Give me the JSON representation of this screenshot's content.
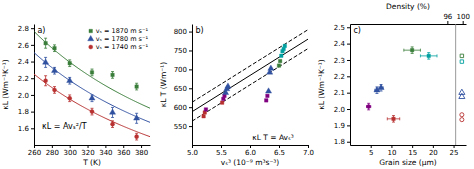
{
  "chart_data": [
    {
      "type": "scatter",
      "x_label": "T (K)",
      "y_label": "κL (Wm⁻¹K⁻¹)",
      "xlim": [
        260,
        390
      ],
      "ylim": [
        1.4,
        2.85
      ],
      "xticks": [
        260,
        280,
        300,
        320,
        340,
        360,
        380
      ],
      "yticks": [
        1.6,
        1.8,
        {
          "value": 2.0,
          "label": "2.0"
        },
        2.2,
        2.4,
        2.6,
        2.8
      ],
      "legend": "upper right",
      "annotations": [
        "a)",
        "κL = Avₛ²/T"
      ],
      "series": [
        {
          "name": "vₛ = 1870 m s⁻¹",
          "color": "#3a7d3a",
          "marker": "square",
          "x": [
            273,
            283,
            300,
            325,
            348,
            375
          ],
          "values": [
            2.62,
            2.56,
            2.38,
            2.27,
            2.24,
            2.1
          ],
          "errors": [
            0.06,
            0.04,
            0.04,
            0.04,
            0.04,
            0.04
          ],
          "fit_A": 718
        },
        {
          "name": "vₛ = 1780 m s⁻¹",
          "color": "#3050a0",
          "marker": "triangle",
          "x": [
            273,
            283,
            300,
            325,
            348,
            375
          ],
          "values": [
            2.39,
            2.29,
            2.17,
            1.96,
            1.79,
            1.72
          ],
          "errors": [
            0.06,
            0.04,
            0.04,
            0.04,
            0.06,
            0.06
          ],
          "fit_A": 652
        },
        {
          "name": "vₛ = 1740 m s⁻¹",
          "color": "#b83030",
          "marker": "circle",
          "x": [
            273,
            283,
            300,
            325,
            348,
            375
          ],
          "values": [
            2.17,
            2.06,
            1.96,
            1.8,
            1.65,
            1.5
          ],
          "errors": [
            0.06,
            0.04,
            0.04,
            0.04,
            0.04,
            0.04
          ],
          "fit_A": 585
        }
      ]
    },
    {
      "type": "scatter",
      "x_label": "vₛ³ (10⁻⁹ m³s⁻³)",
      "y_label": "κL T (Wm⁻¹)",
      "xlim": [
        5.0,
        7.0
      ],
      "ylim": [
        500,
        820
      ],
      "xticks": [
        {
          "value": 5.0,
          "label": "5.0"
        },
        5.5,
        {
          "value": 6.0,
          "label": "6.0"
        },
        6.5,
        {
          "value": 7.0,
          "label": "7.0"
        }
      ],
      "yticks": [
        550,
        600,
        650,
        700,
        750,
        800
      ],
      "annotations": [
        "b)",
        "κL T = Avₛ³"
      ],
      "series": [
        {
          "type": "line",
          "color": "black",
          "line_style": "dashed",
          "x": [
            5.0,
            7.0
          ],
          "values": [
            563,
            755
          ]
        },
        {
          "type": "line",
          "color": "black",
          "line_style": "solid",
          "x": [
            5.0,
            7.0
          ],
          "values": [
            588,
            780
          ]
        },
        {
          "type": "line",
          "color": "black",
          "line_style": "dashed",
          "x": [
            5.0,
            7.0
          ],
          "values": [
            613,
            805
          ]
        },
        {
          "color": "#b83030",
          "marker": "square",
          "x": [
            5.2,
            5.22,
            5.52
          ],
          "values": [
            576,
            586,
            612
          ]
        },
        {
          "color": "#800080",
          "marker": "square",
          "x": [
            5.24,
            5.54,
            5.56,
            6.28,
            6.3
          ],
          "values": [
            594,
            622,
            630,
            618,
            630
          ]
        },
        {
          "color": "#3050a0",
          "marker": "triangle",
          "x": [
            5.58,
            5.6,
            5.62,
            6.32,
            6.34,
            6.36
          ],
          "values": [
            638,
            648,
            655,
            642,
            692,
            702
          ]
        },
        {
          "color": "#3a7d3a",
          "marker": "square",
          "x": [
            6.5,
            6.52
          ],
          "values": [
            710,
            722
          ]
        },
        {
          "color": "#00a0a0",
          "marker": "square",
          "x": [
            6.54,
            6.56,
            6.58,
            6.6
          ],
          "values": [
            736,
            748,
            754,
            762
          ]
        }
      ]
    },
    {
      "type": "scatter",
      "x_label": "Grain size (μm)",
      "y_label": "κL (Wm⁻¹K⁻¹)",
      "x2_label": "Density (%)",
      "xlim": [
        0,
        28
      ],
      "ylim": [
        1.78,
        2.52
      ],
      "xticks": [
        5,
        10,
        15,
        20,
        25
      ],
      "yticks": [
        1.8,
        1.9,
        {
          "value": 2.0,
          "label": "2.0"
        },
        2.1,
        2.2,
        2.3,
        2.4,
        2.5
      ],
      "x2lim": [
        0,
        28
      ],
      "x2ticks": [
        {
          "value": 23.5,
          "label": "96"
        },
        {
          "value": 27.2,
          "label": "100"
        }
      ],
      "vlines": [
        25.5
      ],
      "annotations": [
        "c)"
      ],
      "series": [
        {
          "color": "#800080",
          "marker": "circle",
          "x": [
            4.5
          ],
          "values": [
            2.015
          ],
          "x_errors": [
            0.5
          ],
          "errors": [
            0.02
          ]
        },
        {
          "color": "#3050a0",
          "marker": "triangle",
          "x": [
            6.5,
            7.5
          ],
          "values": [
            2.115,
            2.13
          ],
          "x_errors": [
            0.5,
            0.5
          ],
          "errors": [
            0.02,
            0.02
          ]
        },
        {
          "color": "#b83030",
          "marker": "square",
          "x": [
            10.5
          ],
          "values": [
            1.94
          ],
          "x_errors": [
            1.5
          ],
          "errors": [
            0.02
          ]
        },
        {
          "color": "#3a7d3a",
          "marker": "square",
          "x": [
            15.0
          ],
          "values": [
            2.36
          ],
          "x_errors": [
            2.0
          ],
          "errors": [
            0.02
          ]
        },
        {
          "color": "#00a0a0",
          "marker": "square",
          "x": [
            19.0
          ],
          "values": [
            2.325
          ],
          "x_errors": [
            2.0
          ],
          "errors": [
            0.02
          ]
        },
        {
          "color": "#3a7d3a",
          "marker": "open-square",
          "x": [
            27.0
          ],
          "values": [
            2.325
          ]
        },
        {
          "color": "#00a0a0",
          "marker": "open-square",
          "x": [
            27.0
          ],
          "values": [
            2.29
          ]
        },
        {
          "color": "#3050a0",
          "marker": "open-triangle",
          "x": [
            27.0,
            27.0
          ],
          "values": [
            2.1,
            2.075
          ]
        },
        {
          "color": "#b83030",
          "marker": "open-circle",
          "x": [
            27.0,
            27.0
          ],
          "values": [
            1.965,
            1.935
          ]
        }
      ]
    }
  ]
}
